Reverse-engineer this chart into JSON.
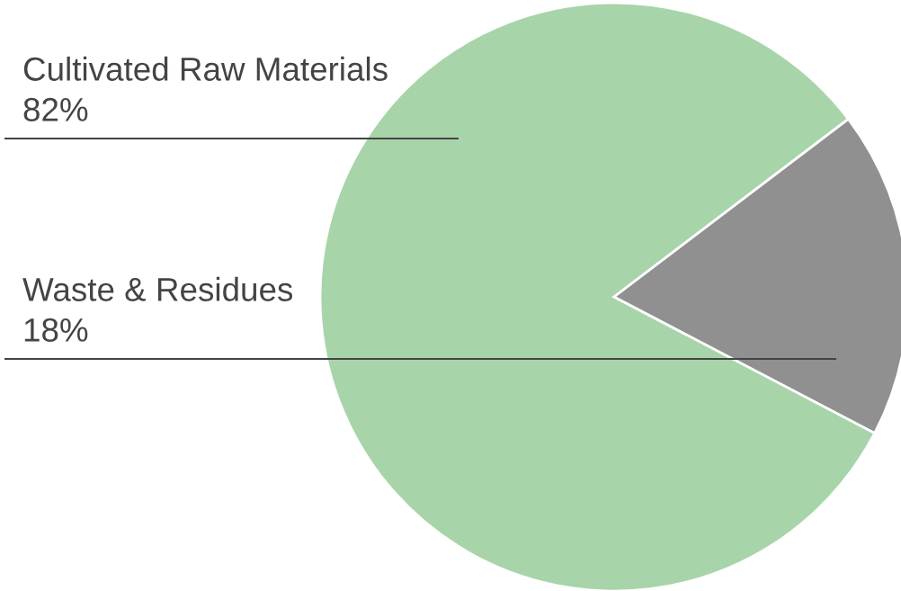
{
  "chart_data": {
    "type": "pie",
    "categories": [
      "Cultivated Raw Materials",
      "Waste & Residues"
    ],
    "values": [
      82,
      18
    ],
    "value_labels": [
      "82%",
      "18%"
    ],
    "colors": [
      "#a8d4aa",
      "#909090"
    ],
    "legend": false
  }
}
